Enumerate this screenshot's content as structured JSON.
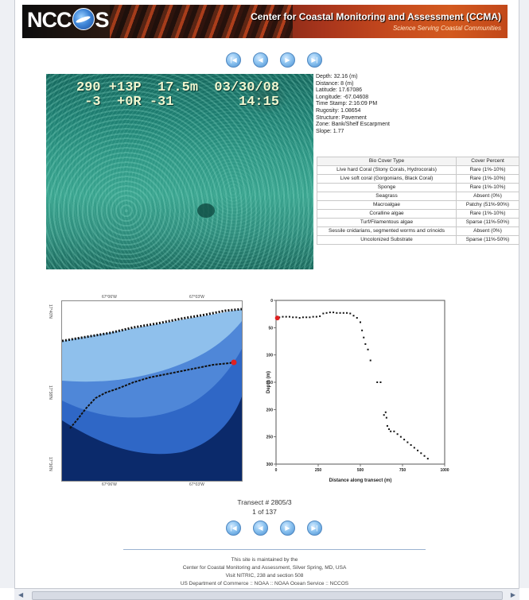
{
  "banner": {
    "logo_text_left": "NCC",
    "logo_text_right": "S",
    "title": "Center for Coastal Monitoring and Assessment (CCMA)",
    "subtitle": "Science Serving Coastal Communities"
  },
  "nav_icons": [
    "first-icon",
    "previous-icon",
    "next-icon",
    "last-icon"
  ],
  "photo_overlay": {
    "line1": "290 +13P  17.5m  03/30/08",
    "line2": " -3  +0R -31        14:15"
  },
  "metadata": [
    "Depth: 32.16 (m)",
    "Distance: 8 (m)",
    "Latitude: 17.67086",
    "Longitude: -67.04608",
    "Time Stamp: 2:16:09 PM",
    "Rugosity: 1.08654",
    "Structure: Pavement",
    "Zone: Bank/Shelf Escarpment",
    "Slope: 1.77"
  ],
  "cover_table": {
    "headers": [
      "Bio Cover Type",
      "Cover Percent"
    ],
    "rows": [
      [
        "Live hard Coral (Stony Corals, Hydrocorals)",
        "Rare (1%-10%)"
      ],
      [
        "Live soft coral (Gorgonians, Black Coral)",
        "Rare (1%-10%)"
      ],
      [
        "Sponge",
        "Rare (1%-10%)"
      ],
      [
        "Seagrass",
        "Absent (0%)"
      ],
      [
        "Macroalgae",
        "Patchy (51%-90%)"
      ],
      [
        "Coralline algae",
        "Rare (1%-10%)"
      ],
      [
        "Turf/Filamentous algae",
        "Sparse (11%-50%)"
      ],
      [
        "Sessile cnidarians, segmented worms and crinoids",
        "Absent (0%)"
      ],
      [
        "Uncolonized Substrate",
        "Sparse (11%-50%)"
      ]
    ]
  },
  "map": {
    "lat_labels": [
      "17°40'N",
      "17°38'N",
      "17°36'N"
    ],
    "lon_labels": [
      "67°06'W",
      "67°03'W",
      "67°00'W"
    ]
  },
  "chart_data": {
    "type": "scatter",
    "title": "",
    "xlabel": "Distance along transect (m)",
    "ylabel": "Depth (m)",
    "xlim": [
      0,
      1000
    ],
    "ylim": [
      300,
      0
    ],
    "xticks": [
      "0",
      "250",
      "500",
      "750",
      "1000"
    ],
    "yticks": [
      "0",
      "50",
      "100",
      "150",
      "200",
      "250",
      "300"
    ],
    "current_point": {
      "x": 8,
      "y": 32.16
    },
    "series": [
      {
        "values": [
          [
            0,
            32
          ],
          [
            20,
            31
          ],
          [
            40,
            30
          ],
          [
            60,
            30
          ],
          [
            80,
            30
          ],
          [
            100,
            31
          ],
          [
            120,
            31
          ],
          [
            140,
            32
          ],
          [
            160,
            31
          ],
          [
            180,
            31
          ],
          [
            200,
            31
          ],
          [
            220,
            30
          ],
          [
            240,
            30
          ],
          [
            260,
            29
          ],
          [
            280,
            24
          ],
          [
            300,
            23
          ],
          [
            320,
            22
          ],
          [
            340,
            22
          ],
          [
            360,
            23
          ],
          [
            380,
            23
          ],
          [
            400,
            23
          ],
          [
            420,
            23
          ],
          [
            440,
            24
          ],
          [
            460,
            28
          ],
          [
            480,
            32
          ],
          [
            500,
            40
          ],
          [
            510,
            55
          ],
          [
            520,
            68
          ],
          [
            530,
            80
          ],
          [
            545,
            90
          ],
          [
            560,
            110
          ],
          [
            600,
            150
          ],
          [
            620,
            150
          ],
          [
            640,
            210
          ],
          [
            650,
            205
          ],
          [
            655,
            215
          ],
          [
            660,
            230
          ],
          [
            670,
            236
          ],
          [
            680,
            240
          ],
          [
            700,
            240
          ],
          [
            720,
            245
          ],
          [
            740,
            250
          ],
          [
            760,
            255
          ],
          [
            780,
            260
          ],
          [
            800,
            265
          ],
          [
            820,
            270
          ],
          [
            840,
            275
          ],
          [
            860,
            280
          ],
          [
            880,
            285
          ],
          [
            900,
            290
          ]
        ]
      }
    ]
  },
  "transect": {
    "label": "Transect # 2805/3",
    "count": "1 of 137"
  },
  "footer": {
    "line1": "This site is maintained by the",
    "line2": "Center for Coastal Monitoring and Assessment, Silver Spring, MD, USA",
    "line3": "Visit NITRIC, 238 and section 508",
    "line4": "US Department of Commerce :: NOAA :: NOAA Ocean Service :: NCCOS"
  },
  "colors": {
    "map_deep": "#0b2a6b",
    "map_mid": "#2f67c6",
    "map_shallow": "#8fc0ec",
    "track": "#111111",
    "current": "#e02020"
  }
}
